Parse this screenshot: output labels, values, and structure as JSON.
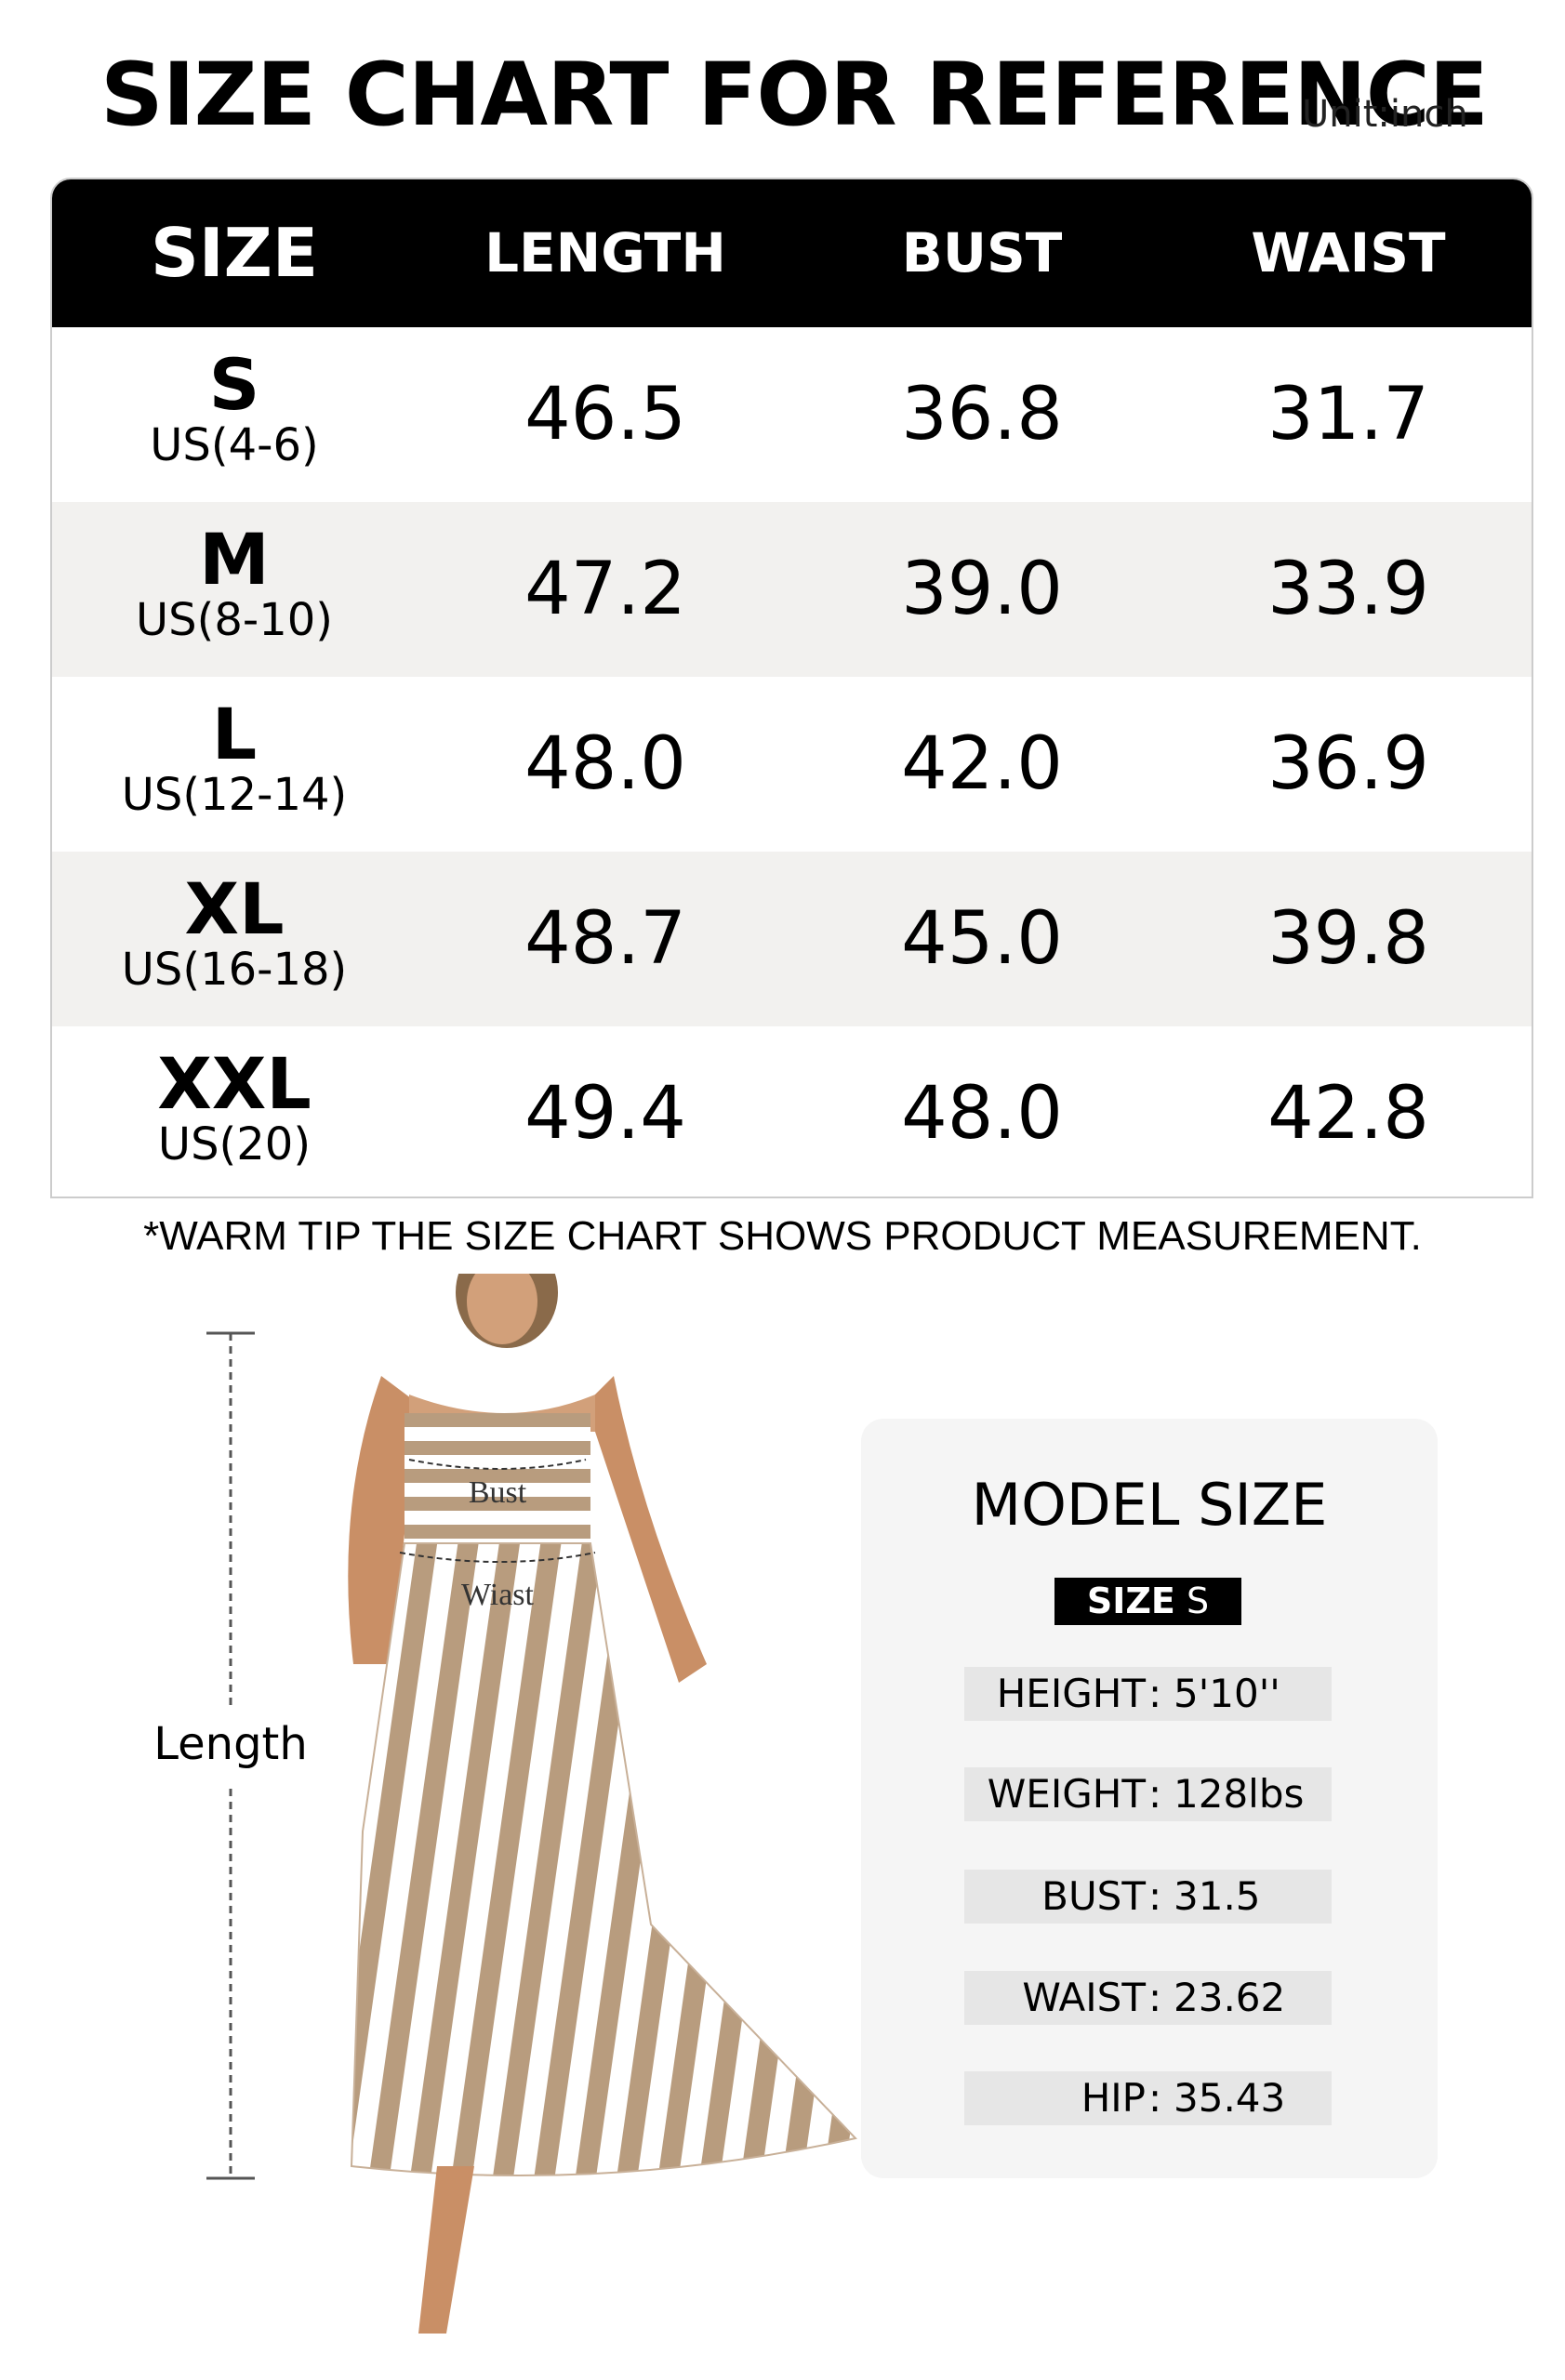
{
  "header": {
    "title": "SIZE CHART FOR REFERENCE",
    "unit": "Unit:inch"
  },
  "table": {
    "columns": [
      "SIZE",
      "LENGTH",
      "BUST",
      "WAIST"
    ],
    "rows": [
      {
        "size": "S",
        "us": "US(4-6)",
        "length": "46.5",
        "bust": "36.8",
        "waist": "31.7"
      },
      {
        "size": "M",
        "us": "US(8-10)",
        "length": "47.2",
        "bust": "39.0",
        "waist": "33.9"
      },
      {
        "size": "L",
        "us": "US(12-14)",
        "length": "48.0",
        "bust": "42.0",
        "waist": "36.9"
      },
      {
        "size": "XL",
        "us": "US(16-18)",
        "length": "48.7",
        "bust": "45.0",
        "waist": "39.8"
      },
      {
        "size": "XXL",
        "us": "US(20)",
        "length": "49.4",
        "bust": "48.0",
        "waist": "42.8"
      }
    ]
  },
  "tip": "*WARM TIP THE SIZE CHART SHOWS PRODUCT MEASUREMENT.",
  "figure": {
    "bust": "Bust",
    "waist": "Wiast",
    "length": "Length"
  },
  "model": {
    "title": "MODEL SIZE",
    "size_label": "SIZE",
    "size_value": "S",
    "items": [
      {
        "label": "HEIGHT",
        "value": "5'10''"
      },
      {
        "label": "WEIGHT",
        "value": "128lbs"
      },
      {
        "label": "BUST",
        "value": "31.5"
      },
      {
        "label": "WAIST",
        "value": "23.62"
      },
      {
        "label": "HIP",
        "value": "35.43"
      }
    ]
  }
}
